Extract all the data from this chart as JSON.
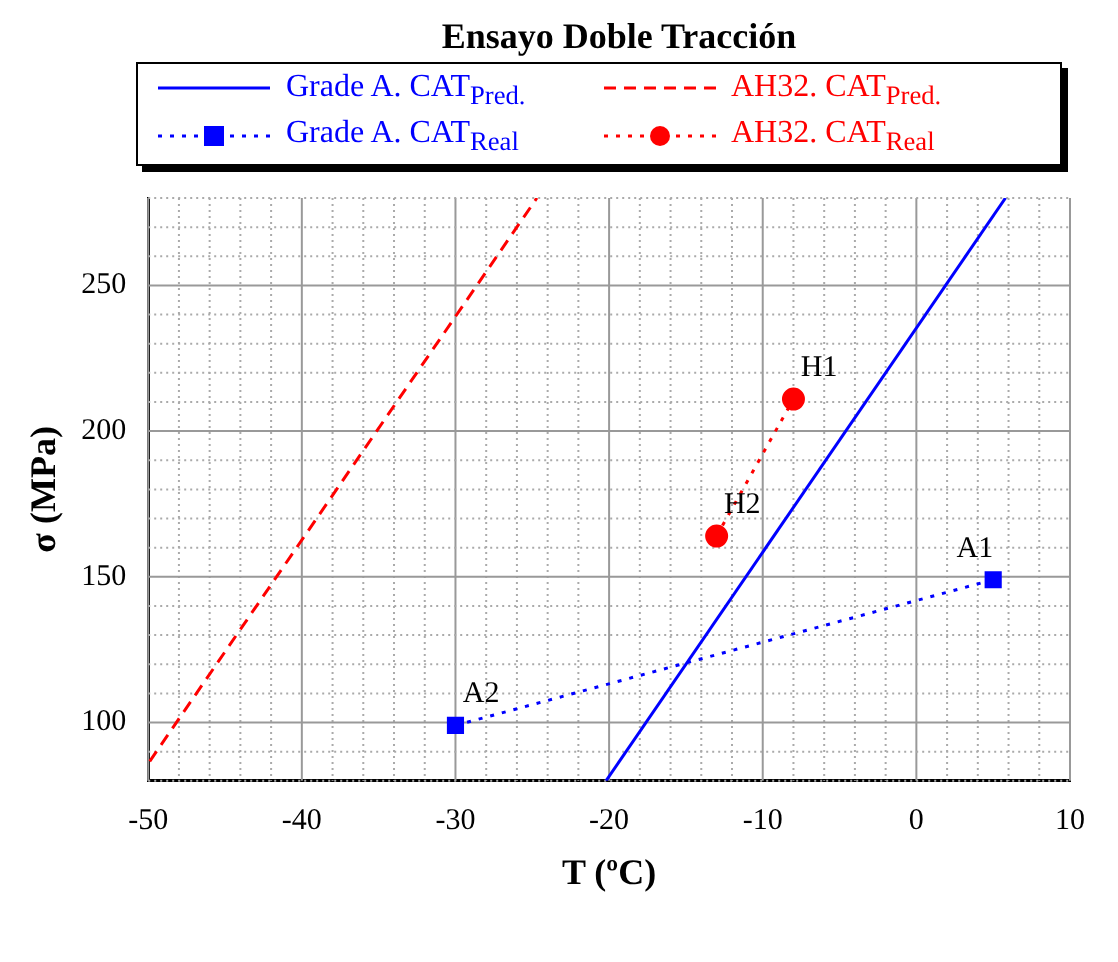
{
  "chart_data": {
    "type": "line",
    "title": "Ensayo Doble Tracción",
    "xlabel": "T (ºC)",
    "ylabel": "σ (MPa)",
    "xlim": [
      -50,
      10
    ],
    "ylim": [
      80,
      280
    ],
    "xticks": [
      -50,
      {
        "value": -48,
        "label": null
      },
      {
        "value": -46,
        "label": null
      },
      {
        "value": -44,
        "label": null
      },
      {
        "value": -42,
        "label": null
      },
      -40,
      {
        "value": -38,
        "label": null
      },
      {
        "value": -36,
        "label": null
      },
      {
        "value": -34,
        "label": null
      },
      {
        "value": -32,
        "label": null
      },
      -30,
      {
        "value": -28,
        "label": null
      },
      {
        "value": -26,
        "label": null
      },
      {
        "value": -24,
        "label": null
      },
      {
        "value": -22,
        "label": null
      },
      -20,
      {
        "value": -18,
        "label": null
      },
      {
        "value": -16,
        "label": null
      },
      {
        "value": -14,
        "label": null
      },
      {
        "value": -12,
        "label": null
      },
      -10,
      {
        "value": -8,
        "label": null
      },
      {
        "value": -6,
        "label": null
      },
      {
        "value": -4,
        "label": null
      },
      {
        "value": -2,
        "label": null
      },
      0,
      {
        "value": 2,
        "label": null
      },
      {
        "value": 4,
        "label": null
      },
      {
        "value": 6,
        "label": null
      },
      {
        "value": 8,
        "label": null
      },
      10
    ],
    "yticks": [
      {
        "value": 80,
        "label": null
      },
      {
        "value": 90,
        "label": null
      },
      100,
      {
        "value": 110,
        "label": null
      },
      {
        "value": 120,
        "label": null
      },
      {
        "value": 130,
        "label": null
      },
      {
        "value": 140,
        "label": null
      },
      150,
      {
        "value": 160,
        "label": null
      },
      {
        "value": 170,
        "label": null
      },
      {
        "value": 180,
        "label": null
      },
      {
        "value": 190,
        "label": null
      },
      200,
      {
        "value": 210,
        "label": null
      },
      {
        "value": 220,
        "label": null
      },
      {
        "value": 230,
        "label": null
      },
      {
        "value": 240,
        "label": null
      },
      250,
      {
        "value": 260,
        "label": null
      },
      {
        "value": 270,
        "label": null
      },
      {
        "value": 280,
        "label": null
      }
    ],
    "grid": true,
    "legend": "top",
    "series": [
      {
        "name": "Grade A. CAT$_{Pred.}$",
        "color": "#0000ff",
        "x": [
          -20.2,
          5.8
        ],
        "values": [
          80,
          280
        ],
        "line_style": "solid",
        "marker": "none"
      },
      {
        "name": "AH32. CAT$_{Pred.}$",
        "color": "#ff0000",
        "x": [
          -49.9,
          -24.7
        ],
        "values": [
          86.7,
          280
        ],
        "line_style": "dashed",
        "marker": "none"
      },
      {
        "name": "Grade A. CAT$_{Real}$",
        "color": "#0000ff",
        "x": [
          -30,
          5
        ],
        "values": [
          99,
          149
        ],
        "line_style": "dotted",
        "marker": "square"
      },
      {
        "name": "AH32. CAT$_{Real}$",
        "color": "#ff0000",
        "x": [
          -13,
          -8
        ],
        "values": [
          164,
          211
        ],
        "line_style": "dotted",
        "marker": "circle"
      }
    ],
    "annotations": [
      {
        "text": "A1",
        "x": 5,
        "y": 149
      },
      {
        "text": "A2",
        "x": -30,
        "y": 99
      },
      {
        "text": "H1",
        "x": -8,
        "y": 211
      },
      {
        "text": "H2",
        "x": -13,
        "y": 164
      }
    ]
  }
}
